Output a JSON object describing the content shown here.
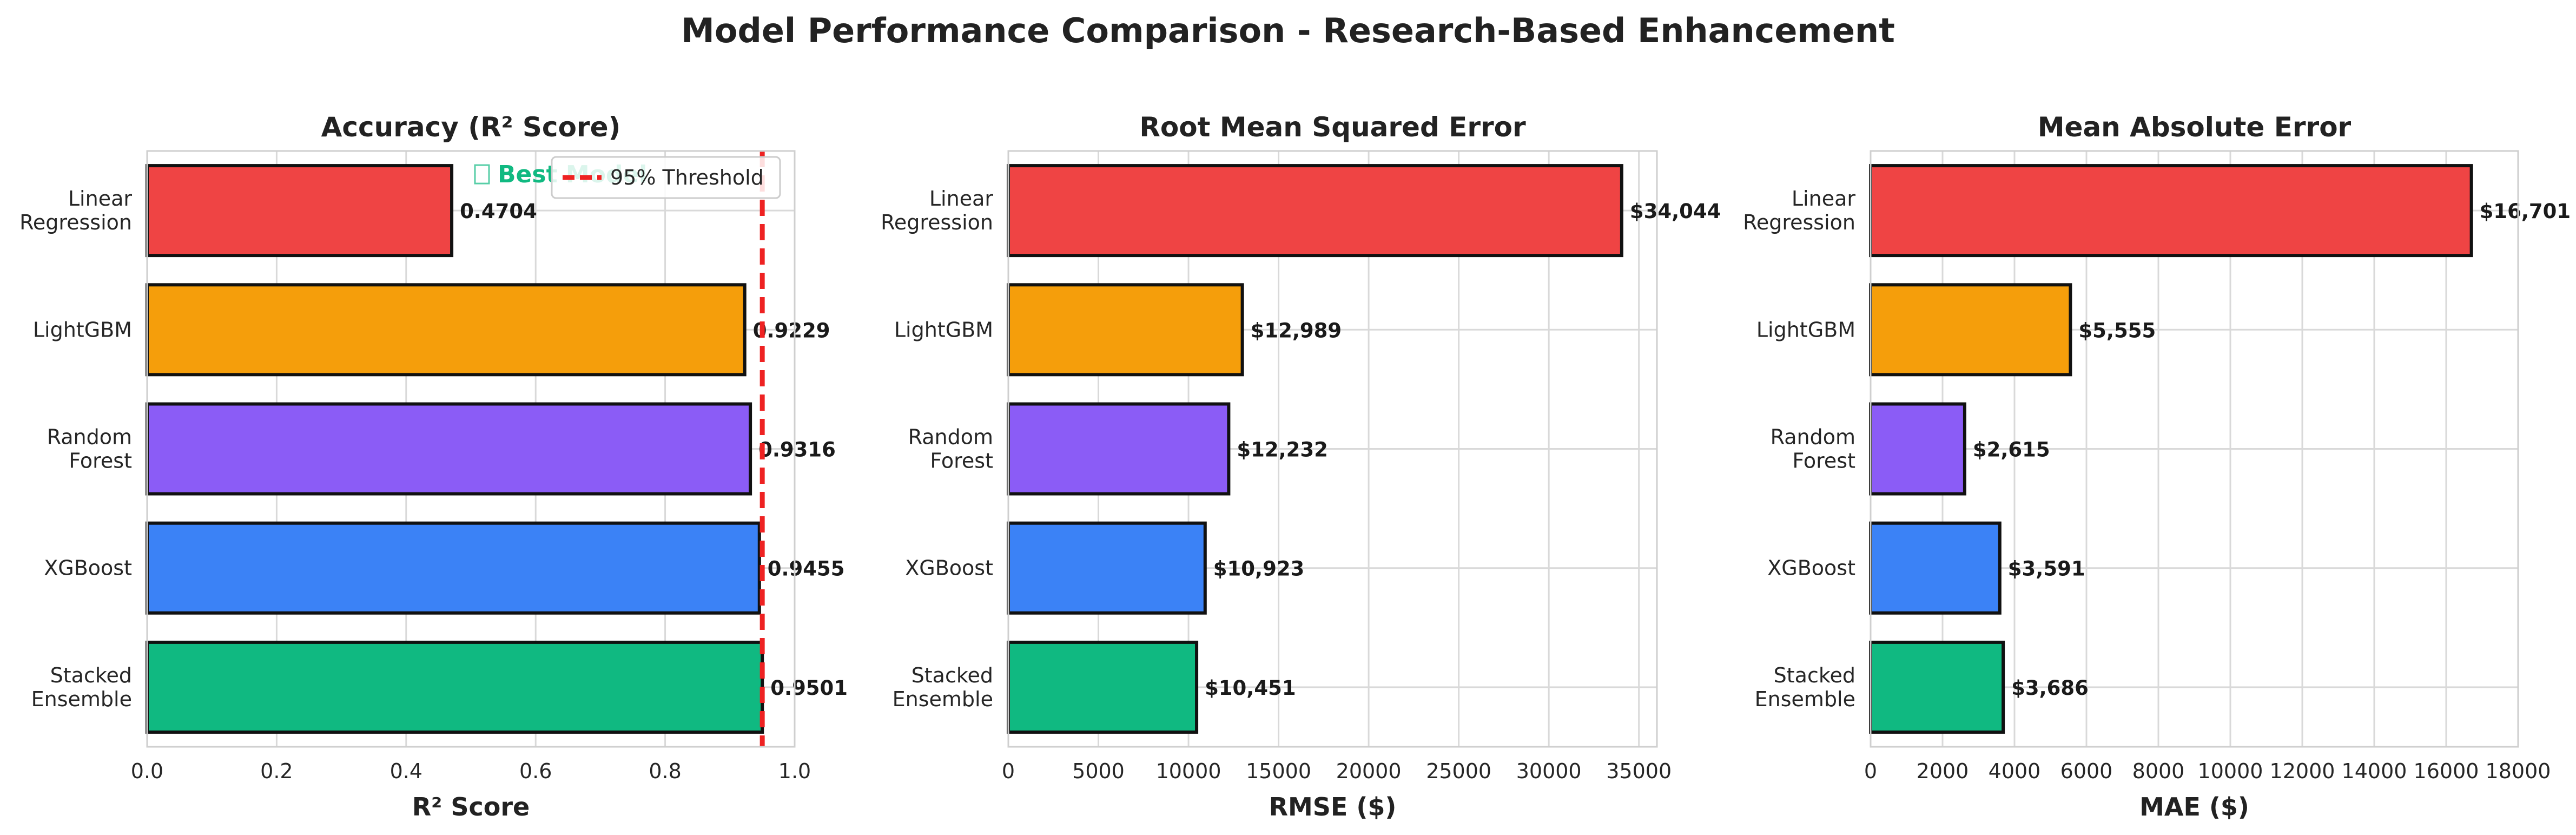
{
  "figure": {
    "title": "Model Performance Comparison - Research-Based Enhancement"
  },
  "colors": {
    "linear_regression": "#EF4444",
    "lightgbm": "#F59E0B",
    "random_forest": "#8B5CF6",
    "xgboost": "#3B82F6",
    "stacked_ensemble": "#10B981",
    "threshold": "#EE2222",
    "best_model_text": "#10B981"
  },
  "chart_data": [
    {
      "type": "bar",
      "orientation": "horizontal",
      "title": "Accuracy (R² Score)",
      "xlabel": "R² Score",
      "ylabel": "",
      "categories": [
        "Linear\nRegression",
        "LightGBM",
        "Random\nForest",
        "XGBoost",
        "Stacked\nEnsemble"
      ],
      "values": [
        0.4704,
        0.9229,
        0.9316,
        0.9455,
        0.9501
      ],
      "value_labels": [
        "0.4704",
        "0.9229",
        "0.9316",
        "0.9455",
        "0.9501"
      ],
      "xlim": [
        0,
        1.0
      ],
      "xticks": [
        0.0,
        0.2,
        0.4,
        0.6,
        0.8,
        1.0
      ],
      "xtick_labels": [
        "0.0",
        "0.2",
        "0.4",
        "0.6",
        "0.8",
        "1.0"
      ],
      "grid": true,
      "threshold": {
        "value": 0.95,
        "label": "95% Threshold"
      },
      "legend_placement": "upper right",
      "annotation": {
        "text": "Best Model",
        "icon": "trophy-icon",
        "target": "Stacked Ensemble"
      }
    },
    {
      "type": "bar",
      "orientation": "horizontal",
      "title": "Root Mean Squared Error",
      "xlabel": "RMSE ($)",
      "ylabel": "",
      "categories": [
        "Linear\nRegression",
        "LightGBM",
        "Random\nForest",
        "XGBoost",
        "Stacked\nEnsemble"
      ],
      "values": [
        34044,
        12989,
        12232,
        10923,
        10451
      ],
      "value_labels": [
        "$34,044",
        "$12,989",
        "$12,232",
        "$10,923",
        "$10,451"
      ],
      "xlim": [
        0,
        36000
      ],
      "xticks": [
        0,
        5000,
        10000,
        15000,
        20000,
        25000,
        30000,
        35000
      ],
      "xtick_labels": [
        "0",
        "5000",
        "10000",
        "15000",
        "20000",
        "25000",
        "30000",
        "35000"
      ],
      "grid": true
    },
    {
      "type": "bar",
      "orientation": "horizontal",
      "title": "Mean Absolute Error",
      "xlabel": "MAE ($)",
      "ylabel": "",
      "categories": [
        "Linear\nRegression",
        "LightGBM",
        "Random\nForest",
        "XGBoost",
        "Stacked\nEnsemble"
      ],
      "values": [
        16701,
        5555,
        2615,
        3591,
        3686
      ],
      "value_labels": [
        "$16,701",
        "$5,555",
        "$2,615",
        "$3,591",
        "$3,686"
      ],
      "xlim": [
        0,
        18000
      ],
      "xticks": [
        0,
        2000,
        4000,
        6000,
        8000,
        10000,
        12000,
        14000,
        16000,
        18000
      ],
      "xtick_labels": [
        "0",
        "2000",
        "4000",
        "6000",
        "8000",
        "10000",
        "12000",
        "14000",
        "16000",
        "18000"
      ],
      "grid": true
    }
  ]
}
